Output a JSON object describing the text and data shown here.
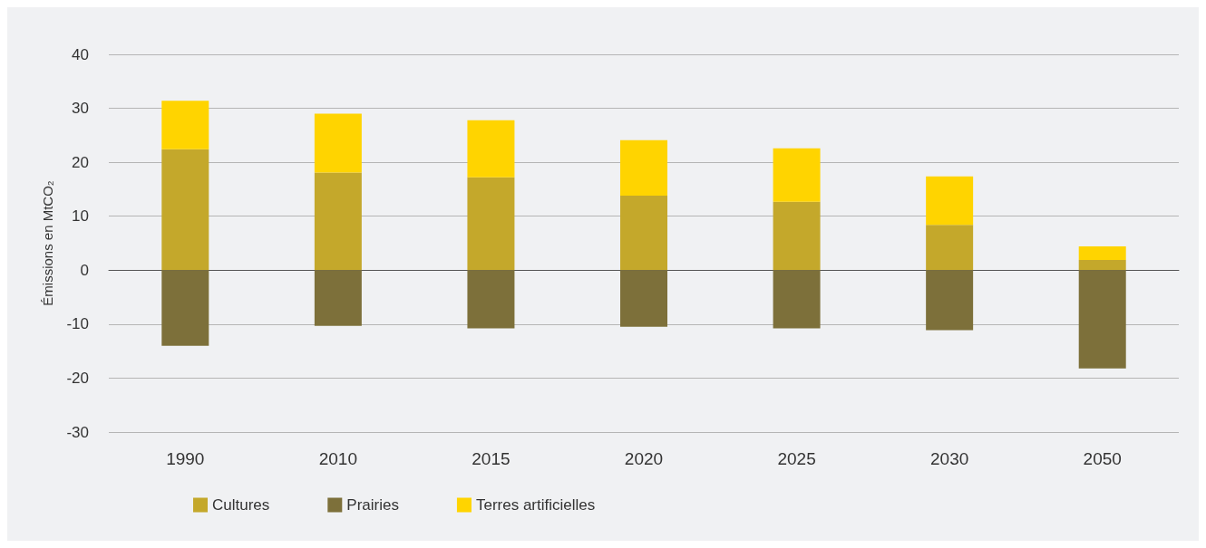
{
  "chart_data": {
    "type": "bar",
    "stacked": true,
    "ylabel": "Émissions en MtCO₂",
    "categories": [
      "1990",
      "2010",
      "2015",
      "2020",
      "2025",
      "2030",
      "2050"
    ],
    "series": [
      {
        "name": "Cultures",
        "color": "#c4a82b",
        "values": [
          22.4,
          18.1,
          17.2,
          13.8,
          12.7,
          8.4,
          1.9
        ]
      },
      {
        "name": "Prairies",
        "color": "#7d703a",
        "values": [
          -14.0,
          -10.3,
          -10.8,
          -10.5,
          -10.8,
          -11.1,
          -18.2
        ]
      },
      {
        "name": "Terres artificielles",
        "color": "#ffd400",
        "values": [
          9.0,
          10.9,
          10.6,
          10.3,
          9.9,
          9.0,
          2.5
        ]
      }
    ],
    "ylim": [
      -30,
      40
    ],
    "yticks": [
      -30,
      -20,
      -10,
      0,
      10,
      20,
      30,
      40
    ],
    "grid": "y",
    "legend": "bottom left"
  }
}
